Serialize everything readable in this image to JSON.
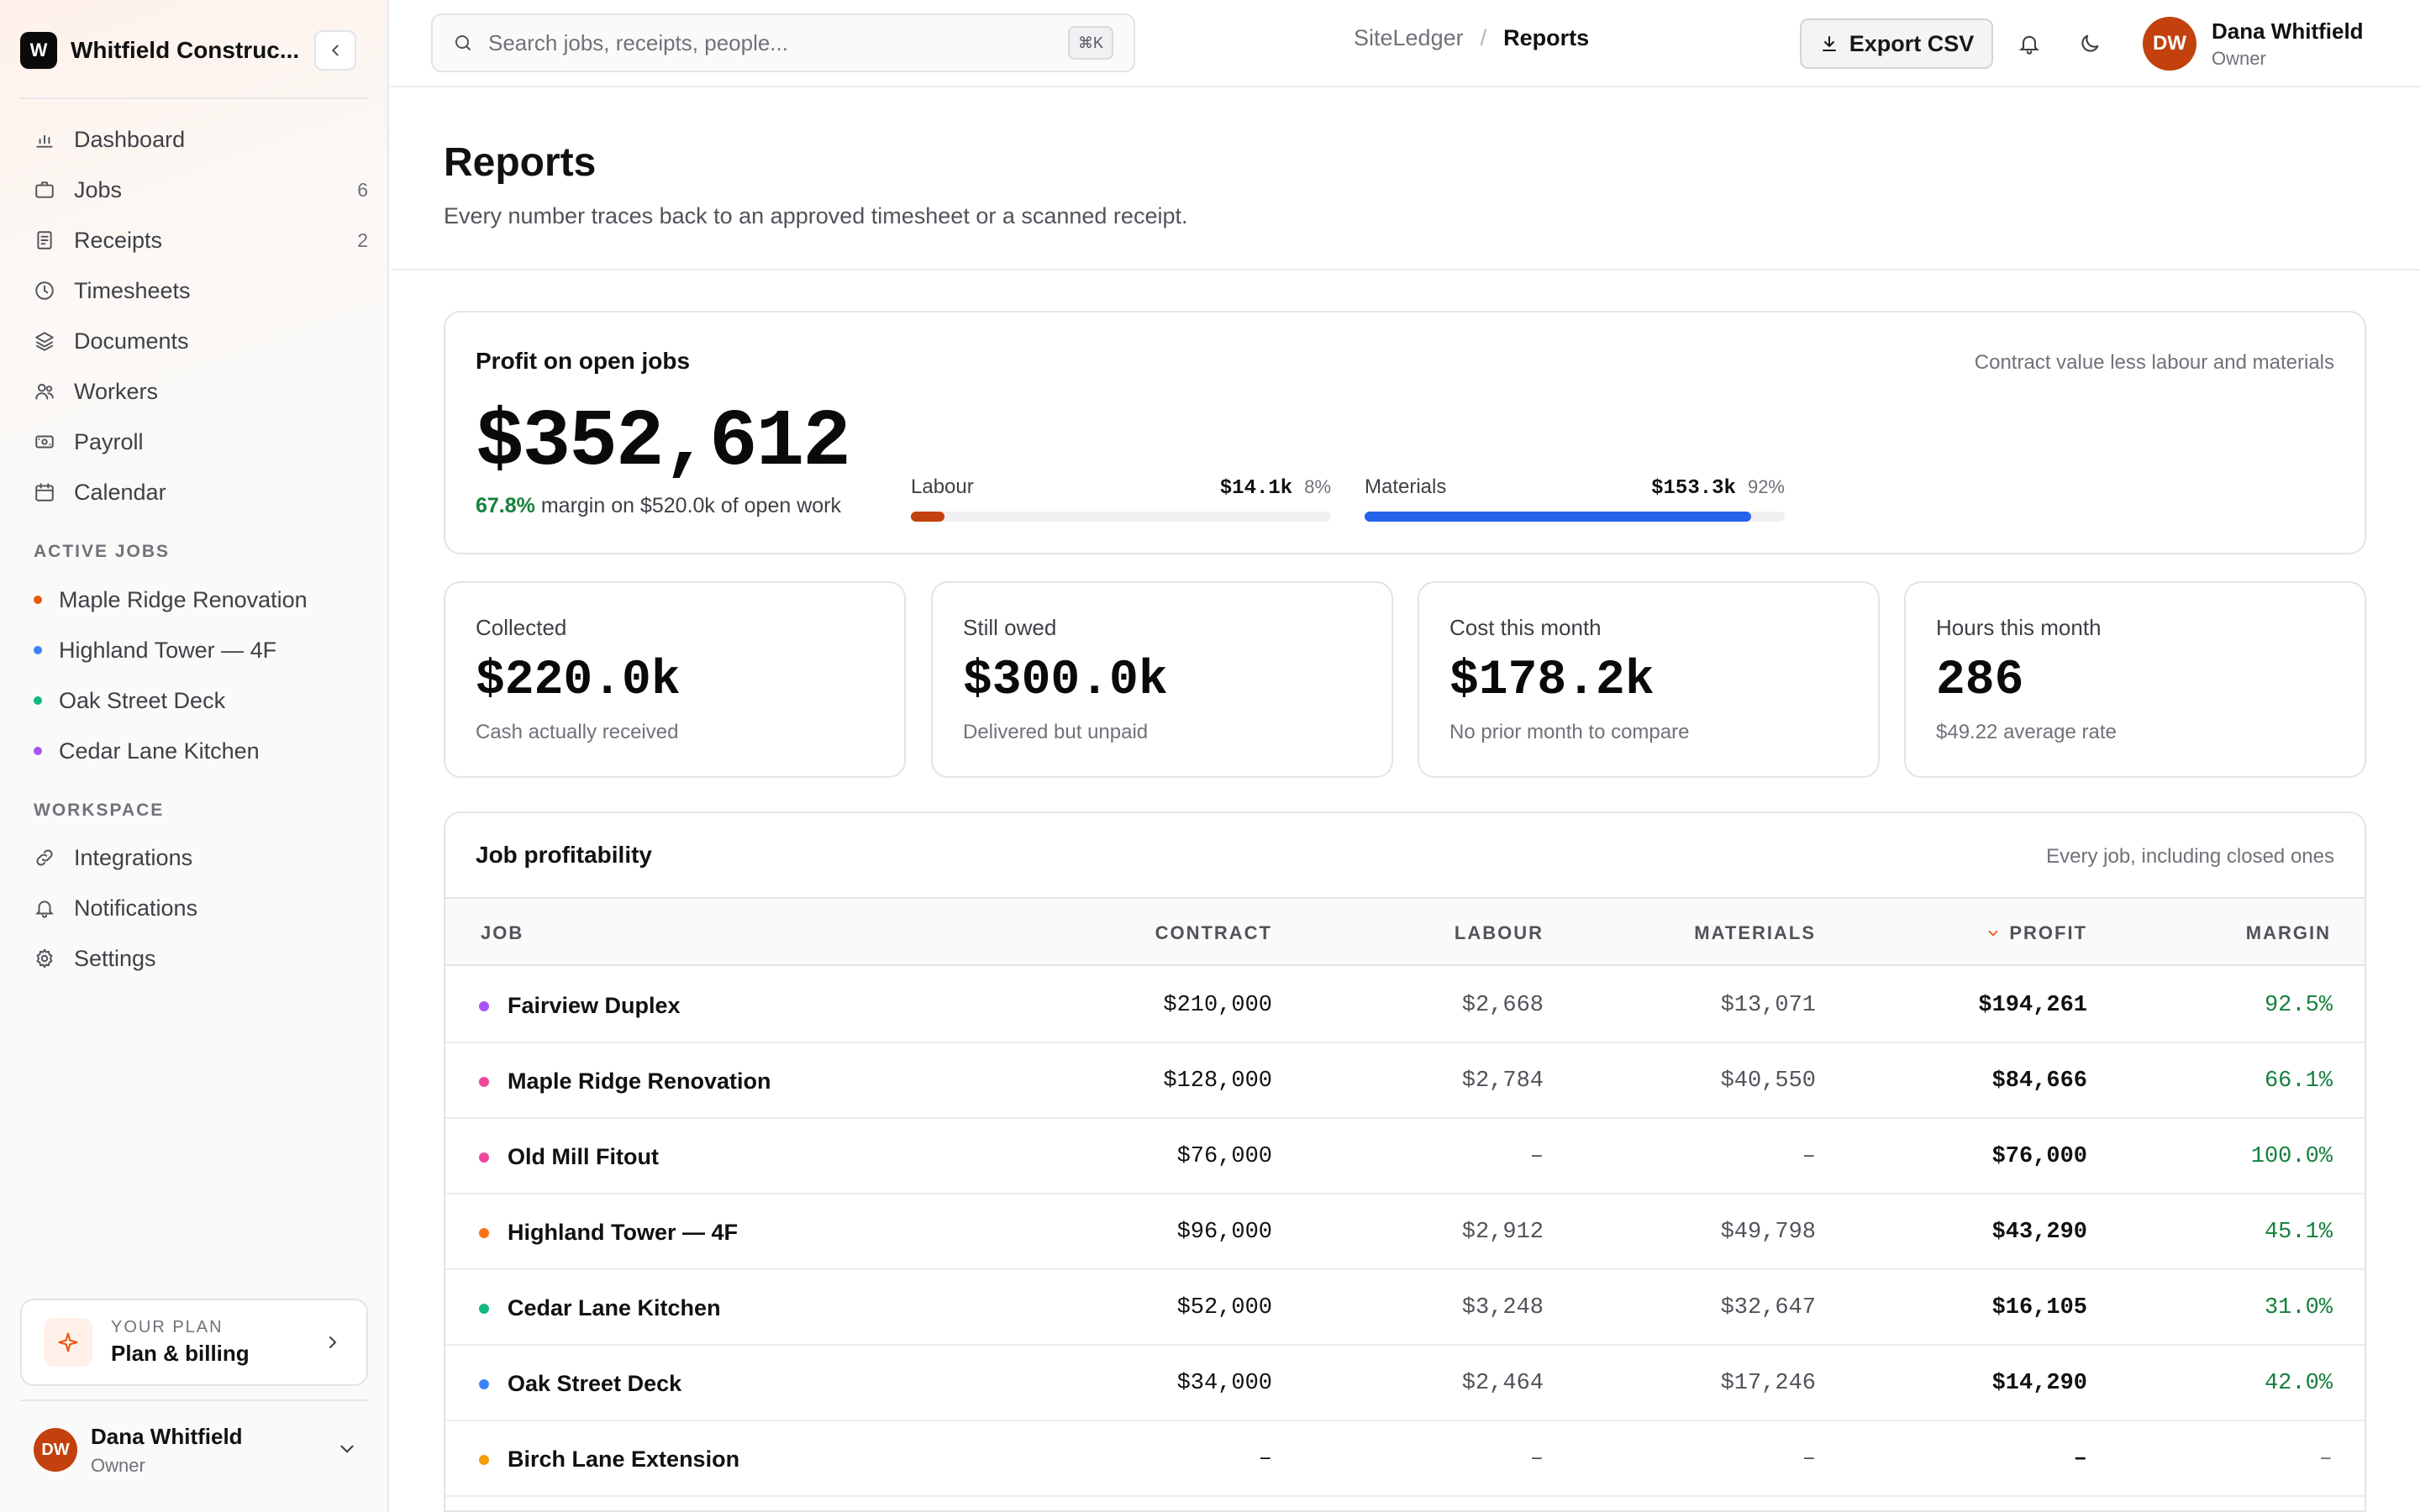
{
  "sidebar": {
    "brand_initial": "W",
    "brand_name": "Whitfield Construc...",
    "nav": [
      {
        "label": "Dashboard",
        "icon": "bar-chart-icon",
        "badge": ""
      },
      {
        "label": "Jobs",
        "icon": "briefcase-icon",
        "badge": "6"
      },
      {
        "label": "Receipts",
        "icon": "receipt-icon",
        "badge": "2"
      },
      {
        "label": "Timesheets",
        "icon": "clock-icon",
        "badge": ""
      },
      {
        "label": "Documents",
        "icon": "layers-icon",
        "badge": ""
      },
      {
        "label": "Workers",
        "icon": "users-icon",
        "badge": ""
      },
      {
        "label": "Payroll",
        "icon": "banknote-icon",
        "badge": ""
      },
      {
        "label": "Calendar",
        "icon": "calendar-icon",
        "badge": ""
      }
    ],
    "active_jobs_label": "ACTIVE JOBS",
    "active_jobs": [
      {
        "label": "Maple Ridge Renovation",
        "color": "#ea580c"
      },
      {
        "label": "Highland Tower — 4F",
        "color": "#3b82f6"
      },
      {
        "label": "Oak Street Deck",
        "color": "#10b981"
      },
      {
        "label": "Cedar Lane Kitchen",
        "color": "#a855f7"
      }
    ],
    "workspace_label": "WORKSPACE",
    "workspace": [
      {
        "label": "Integrations",
        "icon": "link-icon"
      },
      {
        "label": "Notifications",
        "icon": "bell-icon"
      },
      {
        "label": "Settings",
        "icon": "gear-icon"
      }
    ],
    "plan": {
      "sub": "YOUR PLAN",
      "title": "Plan & billing"
    },
    "user": {
      "initials": "DW",
      "name": "Dana Whitfield",
      "role": "Owner"
    }
  },
  "topbar": {
    "search_placeholder": "Search jobs, receipts, people...",
    "search_kbd": "⌘K",
    "crumb_root": "SiteLedger",
    "crumb_sep": "/",
    "crumb_current": "Reports",
    "export_label": "Export CSV",
    "user": {
      "initials": "DW",
      "name": "Dana Whitfield",
      "role": "Owner"
    }
  },
  "page": {
    "title": "Reports",
    "subtitle": "Every number traces back to an approved timesheet or a scanned receipt."
  },
  "profit": {
    "title": "Profit on open jobs",
    "note": "Contract value less labour and materials",
    "value": "$352,612",
    "margin_pct": "67.8%",
    "margin_rest": " margin on $520.0k of open work",
    "labour": {
      "label": "Labour",
      "amount": "$14.1k",
      "pct": "8%",
      "fraction": 0.08,
      "color": "#c2410c"
    },
    "materials": {
      "label": "Materials",
      "amount": "$153.3k",
      "pct": "92%",
      "fraction": 0.92,
      "color": "#2563eb"
    }
  },
  "stats": [
    {
      "label": "Collected",
      "value": "$220.0k",
      "note": "Cash actually received"
    },
    {
      "label": "Still owed",
      "value": "$300.0k",
      "note": "Delivered but unpaid"
    },
    {
      "label": "Cost this month",
      "value": "$178.2k",
      "note": "No prior month to compare"
    },
    {
      "label": "Hours this month",
      "value": "286",
      "note": "$49.22 average rate"
    }
  ],
  "table": {
    "title": "Job profitability",
    "note": "Every job, including closed ones",
    "columns": {
      "job": "JOB",
      "contract": "CONTRACT",
      "labour": "LABOUR",
      "materials": "MATERIALS",
      "profit": "PROFIT",
      "margin": "MARGIN"
    },
    "rows": [
      {
        "job": "Fairview Duplex",
        "color": "#a855f7",
        "contract": "$210,000",
        "labour": "$2,668",
        "materials": "$13,071",
        "profit": "$194,261",
        "margin": "92.5%"
      },
      {
        "job": "Maple Ridge Renovation",
        "color": "#ec4899",
        "contract": "$128,000",
        "labour": "$2,784",
        "materials": "$40,550",
        "profit": "$84,666",
        "margin": "66.1%"
      },
      {
        "job": "Old Mill Fitout",
        "color": "#ec4899",
        "contract": "$76,000",
        "labour": "–",
        "materials": "–",
        "profit": "$76,000",
        "margin": "100.0%"
      },
      {
        "job": "Highland Tower — 4F",
        "color": "#f97316",
        "contract": "$96,000",
        "labour": "$2,912",
        "materials": "$49,798",
        "profit": "$43,290",
        "margin": "45.1%"
      },
      {
        "job": "Cedar Lane Kitchen",
        "color": "#10b981",
        "contract": "$52,000",
        "labour": "$3,248",
        "materials": "$32,647",
        "profit": "$16,105",
        "margin": "31.0%"
      },
      {
        "job": "Oak Street Deck",
        "color": "#3b82f6",
        "contract": "$34,000",
        "labour": "$2,464",
        "materials": "$17,246",
        "profit": "$14,290",
        "margin": "42.0%"
      },
      {
        "job": "Birch Lane Extension",
        "color": "#f59e0b",
        "contract": "–",
        "labour": "–",
        "materials": "–",
        "profit": "–",
        "margin": "–"
      }
    ]
  }
}
